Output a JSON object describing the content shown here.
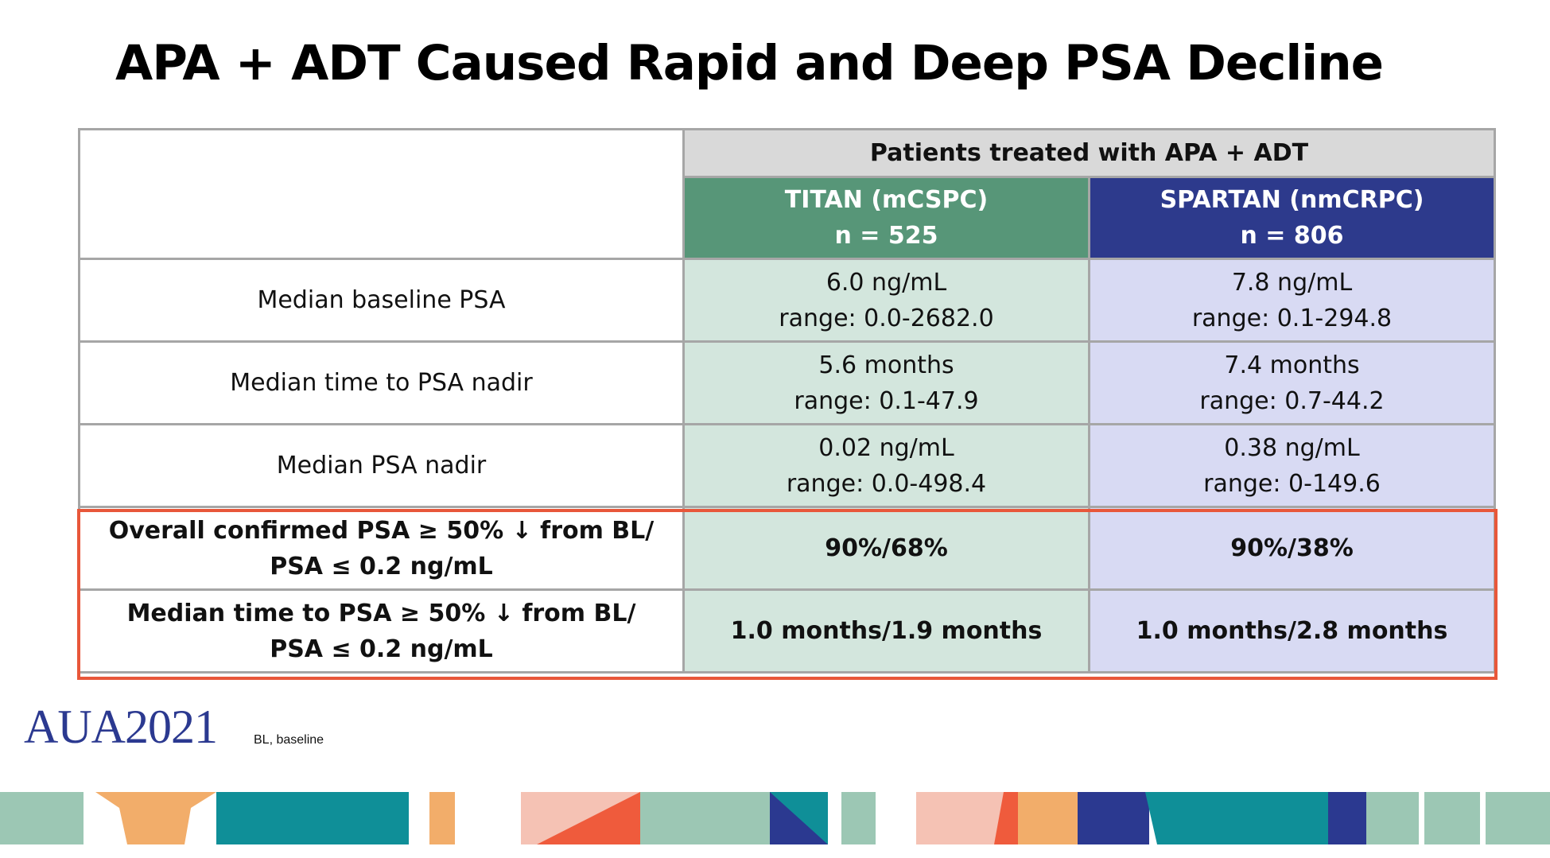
{
  "slide": {
    "title": "APA + ADT Caused Rapid and Deep PSA Decline"
  },
  "table": {
    "group_header": "Patients treated with APA + ADT",
    "columns": [
      {
        "name": "TITAN (mCSPC)",
        "n": "n = 525"
      },
      {
        "name": "SPARTAN (nmCRPC)",
        "n": "n = 806"
      }
    ],
    "rows": [
      {
        "label": [
          "Median baseline PSA"
        ],
        "titan": [
          "6.0 ng/mL",
          "range: 0.0-2682.0"
        ],
        "spartan": [
          "7.8 ng/mL",
          "range: 0.1-294.8"
        ]
      },
      {
        "label": [
          "Median time to PSA nadir"
        ],
        "titan": [
          "5.6 months",
          "range: 0.1-47.9"
        ],
        "spartan": [
          "7.4 months",
          "range: 0.7-44.2"
        ]
      },
      {
        "label": [
          "Median PSA nadir"
        ],
        "titan": [
          "0.02 ng/mL",
          "range: 0.0-498.4"
        ],
        "spartan": [
          "0.38 ng/mL",
          "range: 0-149.6"
        ]
      },
      {
        "label": [
          "Overall confirmed PSA ≥ 50% ↓ from BL/",
          "PSA ≤ 0.2 ng/mL"
        ],
        "titan": [
          "90%/68%"
        ],
        "spartan": [
          "90%/38%"
        ]
      },
      {
        "label": [
          "Median time to PSA ≥ 50% ↓ from BL/",
          "PSA ≤ 0.2 ng/mL"
        ],
        "titan": [
          "1.0 months/1.9 months"
        ],
        "spartan": [
          "1.0 months/2.8 months"
        ]
      }
    ]
  },
  "footer": {
    "logo_text": "AUA2021",
    "footnote": "BL, baseline"
  },
  "colors": {
    "titan_header": "#579678",
    "titan_cell": "#d3e6dd",
    "spartan_header": "#2d3a8c",
    "spartan_cell": "#d8daf3",
    "highlight": "#e8573a",
    "banner_teal": "#0f8f98",
    "banner_mint": "#9cc7b4",
    "banner_orange": "#f2ad6a",
    "banner_peach": "#f5c2b4",
    "banner_red": "#ef5b3c",
    "banner_navy": "#2b3990"
  }
}
